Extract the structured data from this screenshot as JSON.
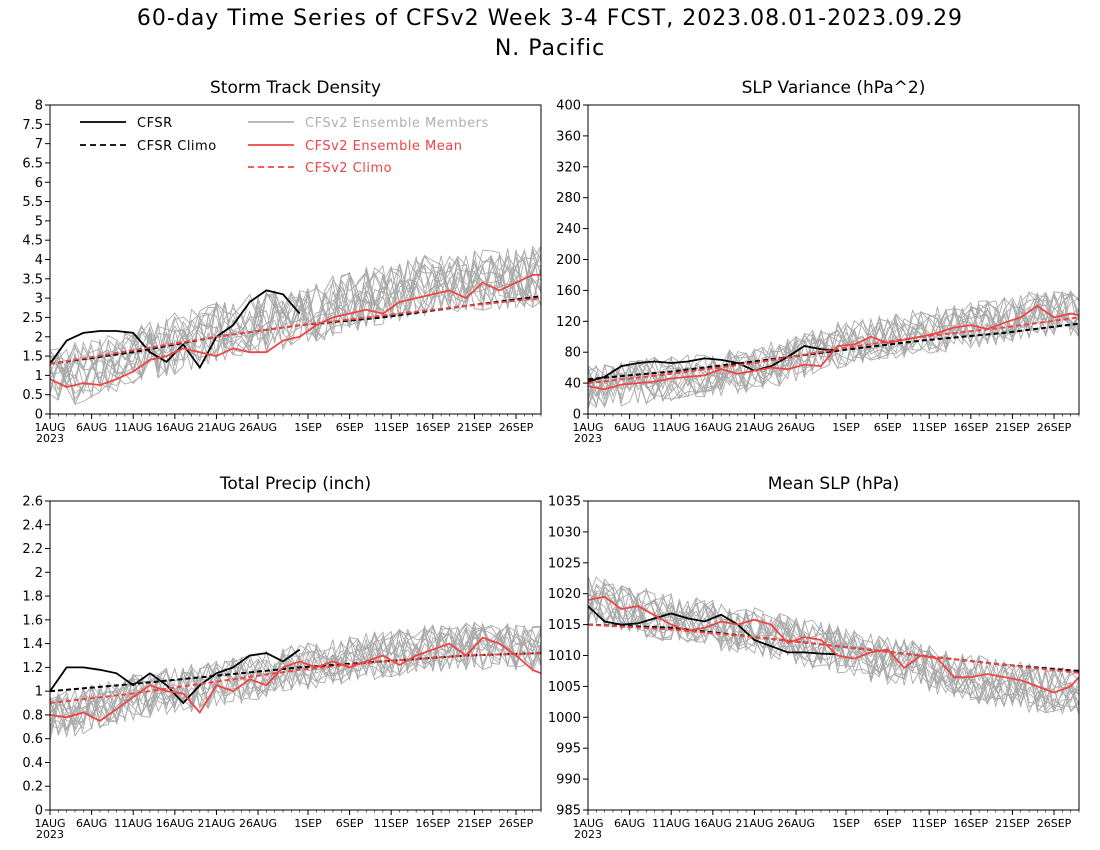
{
  "title_line1": "60-day Time Series of CFSv2 Week 3-4 FCST, 2023.08.01-2023.09.29",
  "title_line2": "N. Pacific",
  "x_ticks": [
    "1AUG",
    "6AUG",
    "11AUG",
    "16AUG",
    "21AUG",
    "26AUG",
    "1SEP",
    "6SEP",
    "11SEP",
    "16SEP",
    "21SEP",
    "26SEP"
  ],
  "x_year": "2023",
  "legend": [
    {
      "label": "CFSR",
      "color": "#000000",
      "style": "solid"
    },
    {
      "label": "CFSR Climo",
      "color": "#000000",
      "style": "dashed"
    },
    {
      "label": "CFSv2 Ensemble Members",
      "color": "#b0b0b0",
      "style": "solid"
    },
    {
      "label": "CFSv2 Ensemble Mean",
      "color": "#ee4444",
      "style": "solid"
    },
    {
      "label": "CFSv2 Climo",
      "color": "#ee4444",
      "style": "dashed"
    }
  ],
  "colors": {
    "cfsr": "#000000",
    "members": "#a9a9a9",
    "mean": "#ee4444",
    "climo_red": "#ee4444"
  },
  "chart_data": [
    {
      "type": "line",
      "title": "Storm Track Density",
      "ylim": [
        0,
        8
      ],
      "yticks": [
        "0",
        "0.5",
        "1",
        "1.5",
        "2",
        "2.5",
        "3",
        "3.5",
        "4",
        "4.5",
        "5",
        "5.5",
        "6",
        "6.5",
        "7",
        "7.5",
        "8"
      ],
      "grid": false,
      "legend_position": "top-left",
      "series": [
        {
          "name": "CFSR",
          "x_days": [
            0,
            2,
            4,
            6,
            8,
            10,
            12,
            14,
            16,
            18,
            20,
            22,
            24,
            26,
            28,
            30
          ],
          "values": [
            1.3,
            1.9,
            2.1,
            2.15,
            2.15,
            2.1,
            1.6,
            1.35,
            1.8,
            1.2,
            2.0,
            2.3,
            2.9,
            3.2,
            3.1,
            2.6
          ]
        },
        {
          "name": "CFSR Climo",
          "x_days": [
            0,
            10,
            20,
            30,
            40,
            50,
            59
          ],
          "values": [
            1.3,
            1.6,
            2.0,
            2.3,
            2.5,
            2.8,
            3.05
          ]
        },
        {
          "name": "CFSv2 Ensemble Mean",
          "x_days": [
            0,
            2,
            4,
            6,
            8,
            10,
            12,
            14,
            16,
            18,
            20,
            22,
            24,
            26,
            28,
            30,
            32,
            34,
            36,
            38,
            40,
            42,
            44,
            46,
            48,
            50,
            52,
            54,
            56,
            58,
            59
          ],
          "values": [
            0.9,
            0.7,
            0.8,
            0.75,
            0.9,
            1.1,
            1.4,
            1.5,
            1.7,
            1.6,
            1.5,
            1.7,
            1.6,
            1.6,
            1.9,
            2.0,
            2.3,
            2.5,
            2.6,
            2.7,
            2.6,
            2.9,
            3.0,
            3.1,
            3.2,
            3.0,
            3.4,
            3.2,
            3.4,
            3.6,
            3.6
          ]
        },
        {
          "name": "CFSv2 Climo",
          "x_days": [
            0,
            10,
            20,
            30,
            40,
            50,
            59
          ],
          "values": [
            1.3,
            1.65,
            2.0,
            2.3,
            2.55,
            2.8,
            3.0
          ]
        }
      ],
      "ensemble": {
        "base": [
          0.9,
          1.15,
          1.5,
          1.8,
          2.1,
          2.35,
          2.5,
          2.8,
          3.1,
          3.3,
          3.4,
          3.5,
          3.55
        ],
        "spread": 0.8,
        "members": 16
      }
    },
    {
      "type": "line",
      "title": "SLP Variance (hPa^2)",
      "ylim": [
        0,
        400
      ],
      "yticks": [
        "0",
        "40",
        "80",
        "120",
        "160",
        "200",
        "240",
        "280",
        "320",
        "360",
        "400"
      ],
      "grid": false,
      "series": [
        {
          "name": "CFSR",
          "x_days": [
            0,
            2,
            4,
            6,
            8,
            10,
            12,
            14,
            16,
            18,
            20,
            22,
            24,
            26,
            28,
            30
          ],
          "values": [
            42,
            48,
            62,
            66,
            68,
            66,
            68,
            72,
            70,
            66,
            56,
            62,
            74,
            88,
            84,
            82
          ]
        },
        {
          "name": "CFSR Climo",
          "x_days": [
            0,
            10,
            20,
            30,
            40,
            50,
            59
          ],
          "values": [
            45,
            55,
            68,
            82,
            95,
            105,
            117
          ]
        },
        {
          "name": "CFSv2 Ensemble Mean",
          "x_days": [
            0,
            2,
            4,
            6,
            8,
            10,
            12,
            14,
            16,
            18,
            20,
            22,
            24,
            26,
            28,
            30,
            32,
            34,
            36,
            38,
            40,
            42,
            44,
            46,
            48,
            50,
            52,
            54,
            56,
            58,
            59
          ],
          "values": [
            36,
            32,
            38,
            40,
            42,
            46,
            48,
            50,
            58,
            52,
            56,
            60,
            58,
            64,
            62,
            88,
            90,
            100,
            92,
            96,
            100,
            105,
            112,
            115,
            110,
            118,
            125,
            140,
            125,
            130,
            128
          ]
        },
        {
          "name": "CFSv2 Climo",
          "x_days": [
            0,
            10,
            20,
            30,
            40,
            50,
            59
          ],
          "values": [
            40,
            52,
            66,
            84,
            100,
            112,
            125
          ]
        }
      ],
      "ensemble": {
        "base": [
          36,
          40,
          46,
          52,
          58,
          70,
          88,
          98,
          105,
          112,
          120,
          130,
          130
        ],
        "spread": 30,
        "members": 16
      }
    },
    {
      "type": "line",
      "title": "Total Precip (inch)",
      "ylim": [
        0,
        2.6
      ],
      "yticks": [
        "0",
        "0.2",
        "0.4",
        "0.6",
        "0.8",
        "1",
        "1.2",
        "1.4",
        "1.6",
        "1.8",
        "2",
        "2.2",
        "2.4",
        "2.6"
      ],
      "grid": false,
      "series": [
        {
          "name": "CFSR",
          "x_days": [
            0,
            2,
            4,
            6,
            8,
            10,
            12,
            14,
            16,
            18,
            20,
            22,
            24,
            26,
            28,
            30
          ],
          "values": [
            1.0,
            1.2,
            1.2,
            1.18,
            1.15,
            1.05,
            1.15,
            1.05,
            0.9,
            1.05,
            1.15,
            1.2,
            1.3,
            1.32,
            1.25,
            1.35
          ]
        },
        {
          "name": "CFSR Climo",
          "x_days": [
            0,
            10,
            20,
            30,
            40,
            50,
            59
          ],
          "values": [
            1.0,
            1.06,
            1.13,
            1.2,
            1.25,
            1.3,
            1.32
          ]
        },
        {
          "name": "CFSv2 Ensemble Mean",
          "x_days": [
            0,
            2,
            4,
            6,
            8,
            10,
            12,
            14,
            16,
            18,
            20,
            22,
            24,
            26,
            28,
            30,
            32,
            34,
            36,
            38,
            40,
            42,
            44,
            46,
            48,
            50,
            52,
            54,
            56,
            58,
            59
          ],
          "values": [
            0.8,
            0.78,
            0.82,
            0.75,
            0.85,
            0.95,
            1.05,
            1.0,
            0.98,
            0.82,
            1.05,
            1.0,
            1.1,
            1.05,
            1.2,
            1.25,
            1.2,
            1.25,
            1.2,
            1.25,
            1.3,
            1.22,
            1.3,
            1.35,
            1.4,
            1.3,
            1.45,
            1.4,
            1.3,
            1.18,
            1.15
          ]
        },
        {
          "name": "CFSv2 Climo",
          "x_days": [
            0,
            10,
            20,
            30,
            40,
            50,
            59
          ],
          "values": [
            0.9,
            0.98,
            1.08,
            1.18,
            1.25,
            1.3,
            1.32
          ]
        }
      ],
      "ensemble": {
        "base": [
          0.78,
          0.85,
          0.95,
          1.0,
          1.05,
          1.12,
          1.2,
          1.25,
          1.3,
          1.35,
          1.38,
          1.38,
          1.35
        ],
        "spread": 0.2,
        "members": 16
      }
    },
    {
      "type": "line",
      "title": "Mean SLP (hPa)",
      "ylim": [
        985,
        1035
      ],
      "yticks": [
        "985",
        "990",
        "995",
        "1000",
        "1005",
        "1010",
        "1015",
        "1020",
        "1025",
        "1030",
        "1035"
      ],
      "grid": false,
      "series": [
        {
          "name": "CFSR",
          "x_days": [
            0,
            2,
            4,
            6,
            8,
            10,
            12,
            14,
            16,
            18,
            20,
            22,
            24,
            26,
            28,
            30
          ],
          "values": [
            1018,
            1015.5,
            1015,
            1015.2,
            1016,
            1016.8,
            1016,
            1015.5,
            1016.6,
            1015,
            1012.5,
            1011.5,
            1010.5,
            1010.5,
            1010.3,
            1010.2
          ]
        },
        {
          "name": "CFSR Climo",
          "x_days": [
            0,
            10,
            20,
            30,
            40,
            50,
            59
          ],
          "values": [
            1015,
            1014.5,
            1013,
            1011.5,
            1010,
            1008.5,
            1007.5
          ]
        },
        {
          "name": "CFSv2 Ensemble Mean",
          "x_days": [
            0,
            2,
            4,
            6,
            8,
            10,
            12,
            14,
            16,
            18,
            20,
            22,
            24,
            26,
            28,
            30,
            32,
            34,
            36,
            38,
            40,
            42,
            44,
            46,
            48,
            50,
            52,
            54,
            56,
            58,
            59
          ],
          "values": [
            1019,
            1019.5,
            1017.5,
            1018,
            1016.5,
            1015,
            1014,
            1014.5,
            1015.5,
            1015,
            1015.8,
            1015,
            1012,
            1013,
            1012.5,
            1010,
            1009.5,
            1010.5,
            1011,
            1008,
            1010,
            1009.5,
            1006.5,
            1006.5,
            1007,
            1006.5,
            1006,
            1005,
            1004,
            1005,
            1006.5
          ]
        },
        {
          "name": "CFSv2 Climo",
          "x_days": [
            0,
            10,
            20,
            30,
            40,
            50,
            59
          ],
          "values": [
            1015,
            1014.2,
            1013,
            1011.5,
            1010,
            1008.5,
            1007.2
          ]
        }
      ],
      "ensemble": {
        "base": [
          1019,
          1017.5,
          1016,
          1015,
          1014,
          1012.5,
          1011,
          1009.5,
          1008.5,
          1007,
          1005.5,
          1004.5,
          1004
        ],
        "spread": 4,
        "members": 16
      }
    }
  ]
}
